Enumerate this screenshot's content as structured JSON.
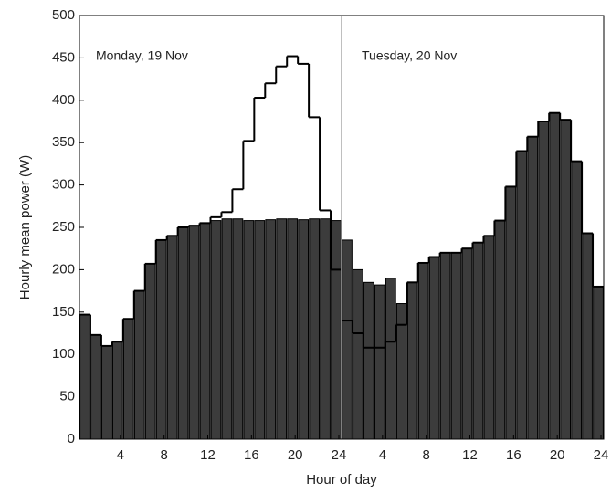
{
  "chart_data": {
    "type": "bar",
    "ylabel": "Hourly mean power (W)",
    "xlabel": "Hour of day",
    "annotations": [
      "Monday, 19 Nov",
      "Tuesday, 20 Nov"
    ],
    "categories": [
      null,
      null,
      null,
      "4",
      null,
      null,
      null,
      "8",
      null,
      null,
      null,
      "12",
      null,
      null,
      null,
      "16",
      null,
      null,
      null,
      "20",
      null,
      null,
      null,
      "24",
      null,
      null,
      null,
      "4",
      null,
      null,
      null,
      "8",
      null,
      null,
      null,
      "12",
      null,
      null,
      null,
      "16",
      null,
      null,
      null,
      "20",
      null,
      null,
      null,
      "24"
    ],
    "series": [
      {
        "type": "bar",
        "color": "#3c3c3c",
        "values": [
          147,
          123,
          110,
          115,
          142,
          175,
          207,
          235,
          240,
          250,
          252,
          255,
          258,
          260,
          260,
          258,
          258,
          259,
          260,
          260,
          259,
          260,
          260,
          258,
          235,
          200,
          185,
          182,
          190,
          160,
          185,
          208,
          215,
          220,
          220,
          225,
          232,
          240,
          258,
          298,
          340,
          357,
          375,
          385,
          377,
          328,
          243,
          180
        ]
      },
      {
        "type": "step",
        "color": "#000000",
        "values": [
          147,
          123,
          110,
          115,
          142,
          175,
          207,
          235,
          240,
          250,
          252,
          255,
          262,
          268,
          295,
          352,
          403,
          420,
          440,
          452,
          443,
          380,
          270,
          200,
          140,
          125,
          108,
          108,
          115,
          135,
          185,
          208,
          215,
          220,
          220,
          225,
          232,
          240,
          258,
          298,
          340,
          357,
          375,
          385,
          377,
          328,
          243,
          180
        ]
      }
    ],
    "ylim": [
      0,
      500
    ],
    "yticks": [
      0,
      50,
      100,
      150,
      200,
      250,
      300,
      350,
      400,
      450,
      500
    ]
  }
}
